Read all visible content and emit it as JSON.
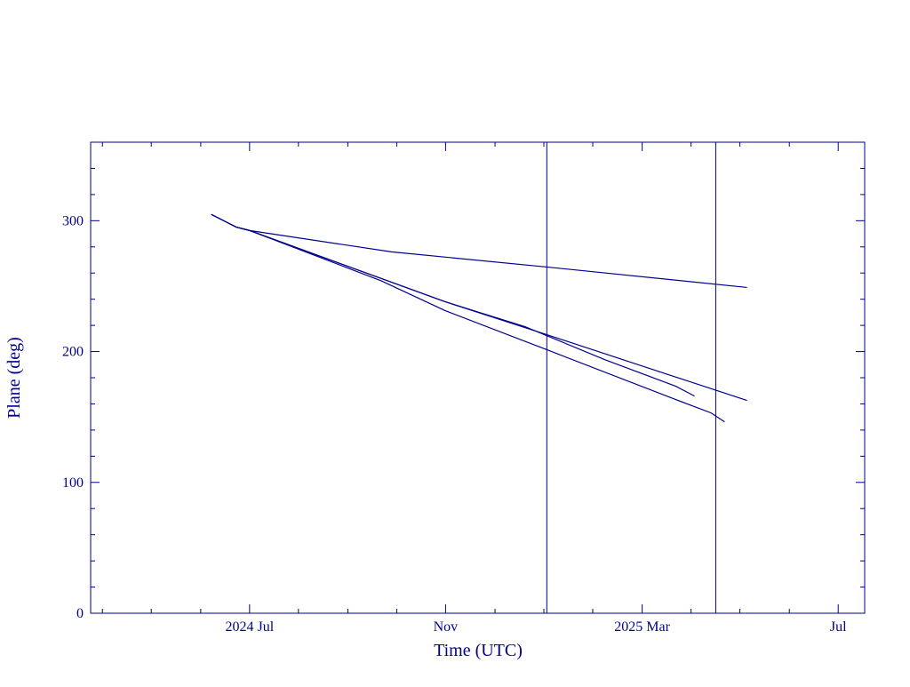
{
  "chart_data": {
    "type": "line",
    "xlabel": "Time (UTC)",
    "ylabel": "Plane (deg)",
    "xlim": [
      2024.23,
      2025.545
    ],
    "ylim": [
      0,
      360
    ],
    "xticks": [
      {
        "value": 2024.5,
        "label": "2024 Jul"
      },
      {
        "value": 2024.833,
        "label": "Nov"
      },
      {
        "value": 2025.167,
        "label": "2025 Mar"
      },
      {
        "value": 2025.5,
        "label": "Jul"
      }
    ],
    "xminorticks": [
      2024.25,
      2024.333,
      2024.417,
      2024.583,
      2024.667,
      2024.75,
      2024.917,
      2025.0,
      2025.083,
      2025.25,
      2025.333,
      2025.417
    ],
    "yticks": [
      0,
      100,
      200,
      300
    ],
    "yminorticks": [
      20,
      40,
      60,
      80,
      120,
      140,
      160,
      180,
      220,
      240,
      260,
      280,
      320,
      340
    ],
    "vlines": [
      2025.005,
      2025.292
    ],
    "color": "#00008b",
    "series": [
      {
        "color": "#00008b",
        "x": [
          2024.435,
          2024.477,
          2024.5,
          2024.741,
          2025.005,
          2025.345
        ],
        "values": [
          304.8,
          295.2,
          292.5,
          276.2,
          264.6,
          249.0
        ]
      },
      {
        "color": "#00008b",
        "x": [
          2024.435,
          2024.477,
          2024.5,
          2024.832,
          2025.005,
          2025.345
        ],
        "values": [
          304.8,
          295.2,
          292.5,
          238.1,
          212.9,
          162.6
        ]
      },
      {
        "color": "#00008b",
        "x": [
          2024.435,
          2024.477,
          2024.5,
          2024.724,
          2024.832,
          2025.005,
          2025.224,
          2025.284,
          2025.307
        ],
        "values": [
          304.8,
          295.2,
          292.5,
          254.0,
          231.3,
          201.4,
          163.3,
          153.1,
          146.3
        ]
      },
      {
        "color": "#00008b",
        "x": [
          2024.435,
          2024.477,
          2024.5,
          2024.832,
          2024.968,
          2025.103,
          2025.224,
          2025.256
        ],
        "values": [
          304.8,
          295.2,
          292.5,
          238.1,
          219.0,
          193.9,
          173.5,
          166.0
        ]
      }
    ]
  }
}
